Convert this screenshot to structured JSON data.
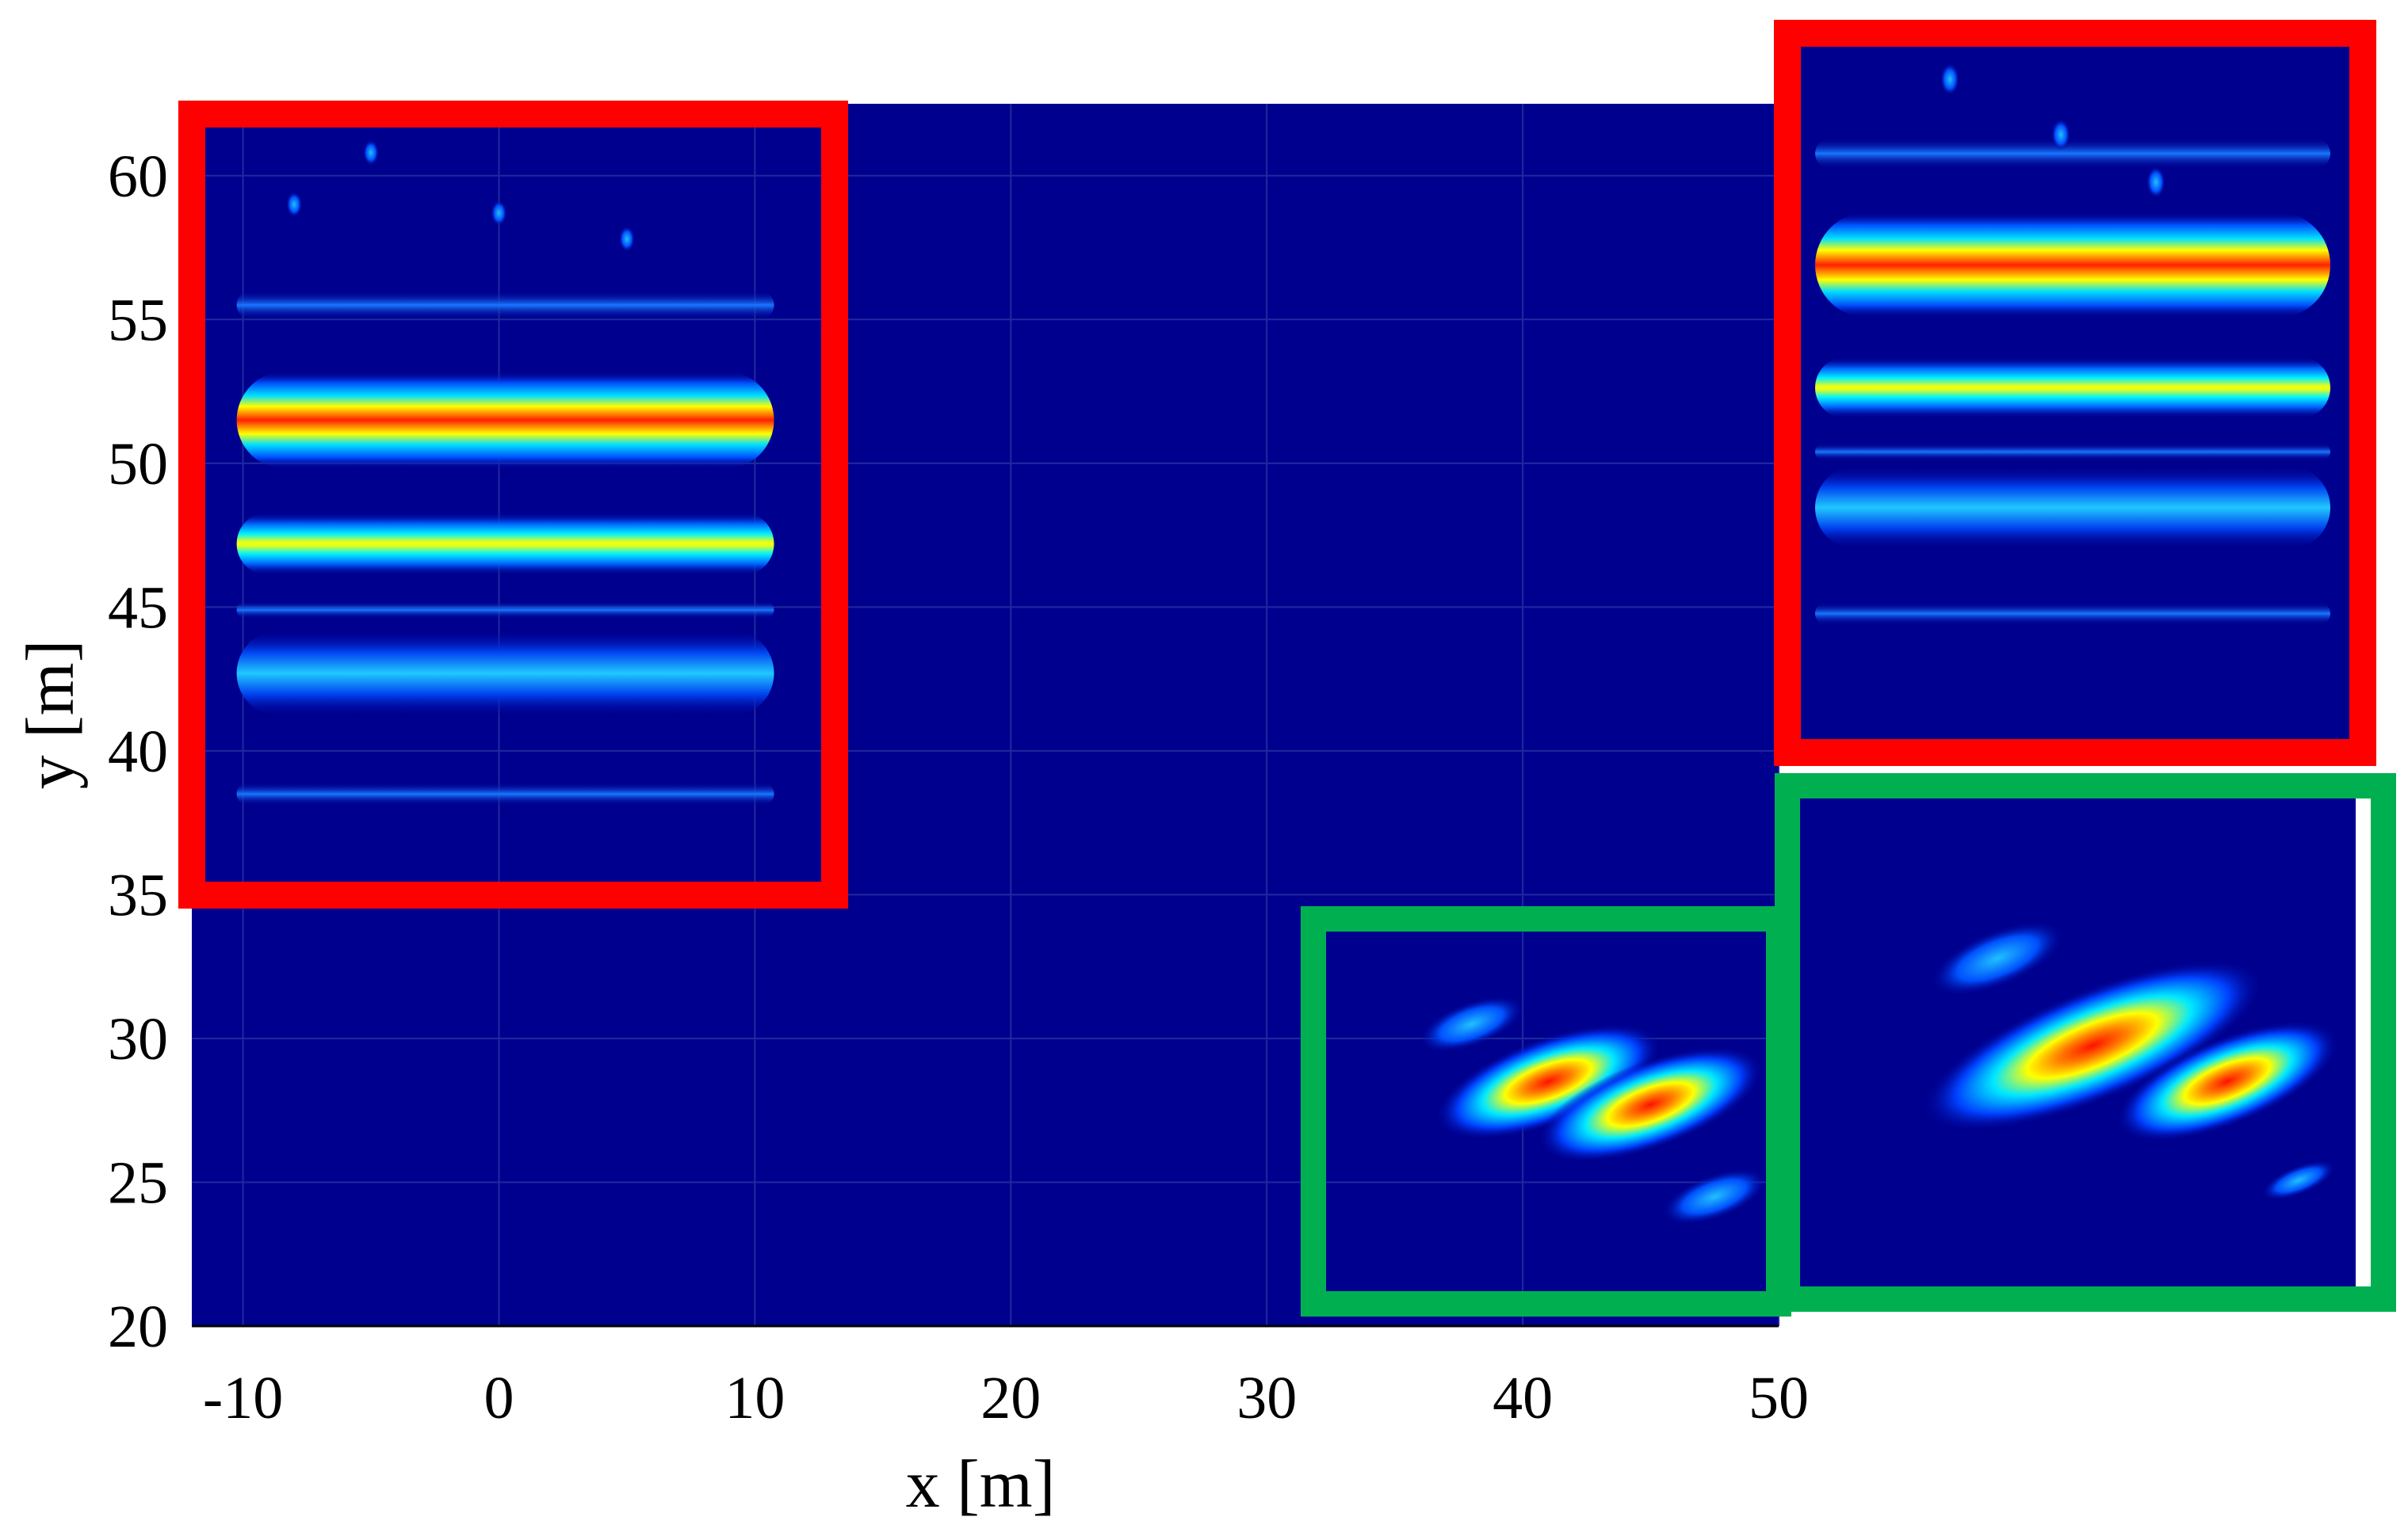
{
  "chart_data": {
    "type": "heatmap",
    "title": "",
    "xlabel": "x [m]",
    "ylabel": "y [m]",
    "xlim": [
      -12,
      50
    ],
    "ylim": [
      20,
      62.5
    ],
    "xticks": [
      -10,
      0,
      10,
      20,
      30,
      40,
      50
    ],
    "yticks": [
      20,
      25,
      30,
      35,
      40,
      45,
      50,
      55,
      60
    ],
    "xtick_labels": [
      "-10",
      "0",
      "10",
      "20",
      "30",
      "40",
      "50"
    ],
    "ytick_labels": [
      "20",
      "25",
      "30",
      "35",
      "40",
      "45",
      "50",
      "55",
      "60"
    ],
    "grid": true,
    "colormap": "jet",
    "colors": {
      "background": "#00008f",
      "highlight_red": "#ff0000",
      "highlight_green": "#00b050",
      "grid": "#1f2a9c"
    },
    "regions": [
      {
        "name": "building-echo-region",
        "frame_color": "red",
        "x_range": [
          -12,
          13
        ],
        "y_range": [
          35,
          62
        ],
        "bands": [
          {
            "y": 51.5,
            "intensity": 1.0,
            "width": 1.7
          },
          {
            "y": 47.2,
            "intensity": 0.7,
            "width": 1.1
          },
          {
            "y": 42.7,
            "intensity": 0.45,
            "width": 1.5
          },
          {
            "y": 55.5,
            "intensity": 0.35,
            "width": 0.5
          },
          {
            "y": 38.5,
            "intensity": 0.3,
            "width": 0.4
          },
          {
            "y": 44.9,
            "intensity": 0.25,
            "width": 0.3
          }
        ]
      },
      {
        "name": "vehicle-echo-region",
        "frame_color": "green",
        "x_range": [
          31,
          50
        ],
        "y_range": [
          20,
          33.5
        ],
        "blobs": [
          {
            "x": 41,
            "y": 28.5,
            "intensity": 1.0
          },
          {
            "x": 45,
            "y": 27.7,
            "intensity": 0.85
          },
          {
            "x": 38,
            "y": 30.5,
            "intensity": 0.4
          },
          {
            "x": 47.5,
            "y": 24.5,
            "intensity": 0.3
          }
        ]
      }
    ],
    "insets": [
      {
        "name": "building-zoom-inset",
        "frame_color": "red",
        "zoom_of": "building-echo-region"
      },
      {
        "name": "vehicle-zoom-inset",
        "frame_color": "green",
        "zoom_of": "vehicle-echo-region"
      }
    ]
  }
}
